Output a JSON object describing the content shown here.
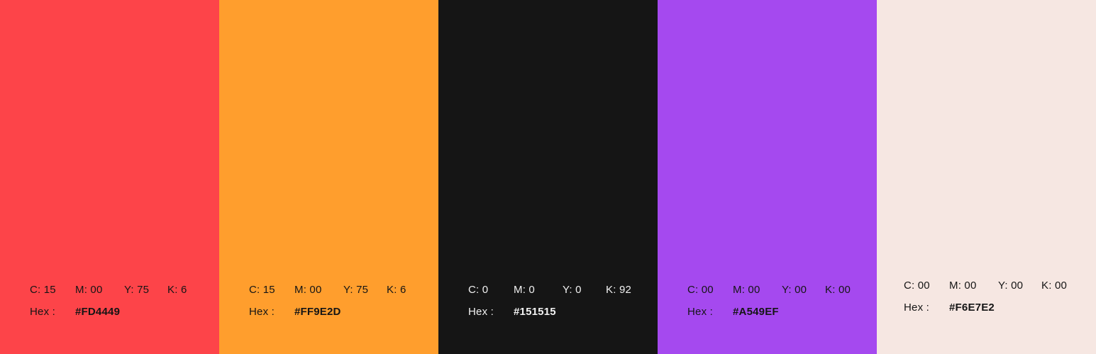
{
  "palette": {
    "swatches": [
      {
        "name": "red",
        "background": "#FD4449",
        "text_color": "#151515",
        "cmyk_c": "C: 15",
        "cmyk_m": "M: 00",
        "cmyk_y": "Y: 75",
        "cmyk_k": "K: 6",
        "hex_label": "Hex :",
        "hex_value": "#FD4449"
      },
      {
        "name": "orange",
        "background": "#FF9E2D",
        "text_color": "#151515",
        "cmyk_c": "C: 15",
        "cmyk_m": "M: 00",
        "cmyk_y": "Y: 75",
        "cmyk_k": "K: 6",
        "hex_label": "Hex :",
        "hex_value": "#FF9E2D"
      },
      {
        "name": "black",
        "background": "#151515",
        "text_color": "#F2F2F2",
        "cmyk_c": "C: 0",
        "cmyk_m": "M: 0",
        "cmyk_y": "Y: 0",
        "cmyk_k": "K: 92",
        "hex_label": "Hex :",
        "hex_value": "#151515"
      },
      {
        "name": "purple",
        "background": "#A549EF",
        "text_color": "#151515",
        "cmyk_c": "C: 00",
        "cmyk_m": "M: 00",
        "cmyk_y": "Y: 00",
        "cmyk_k": "K: 00",
        "hex_label": "Hex :",
        "hex_value": "#A549EF"
      },
      {
        "name": "cream",
        "background": "#F6E7E2",
        "text_color": "#151515",
        "cmyk_c": "C: 00",
        "cmyk_m": "M: 00",
        "cmyk_y": "Y: 00",
        "cmyk_k": "K: 00",
        "hex_label": "Hex :",
        "hex_value": "#F6E7E2"
      }
    ]
  }
}
